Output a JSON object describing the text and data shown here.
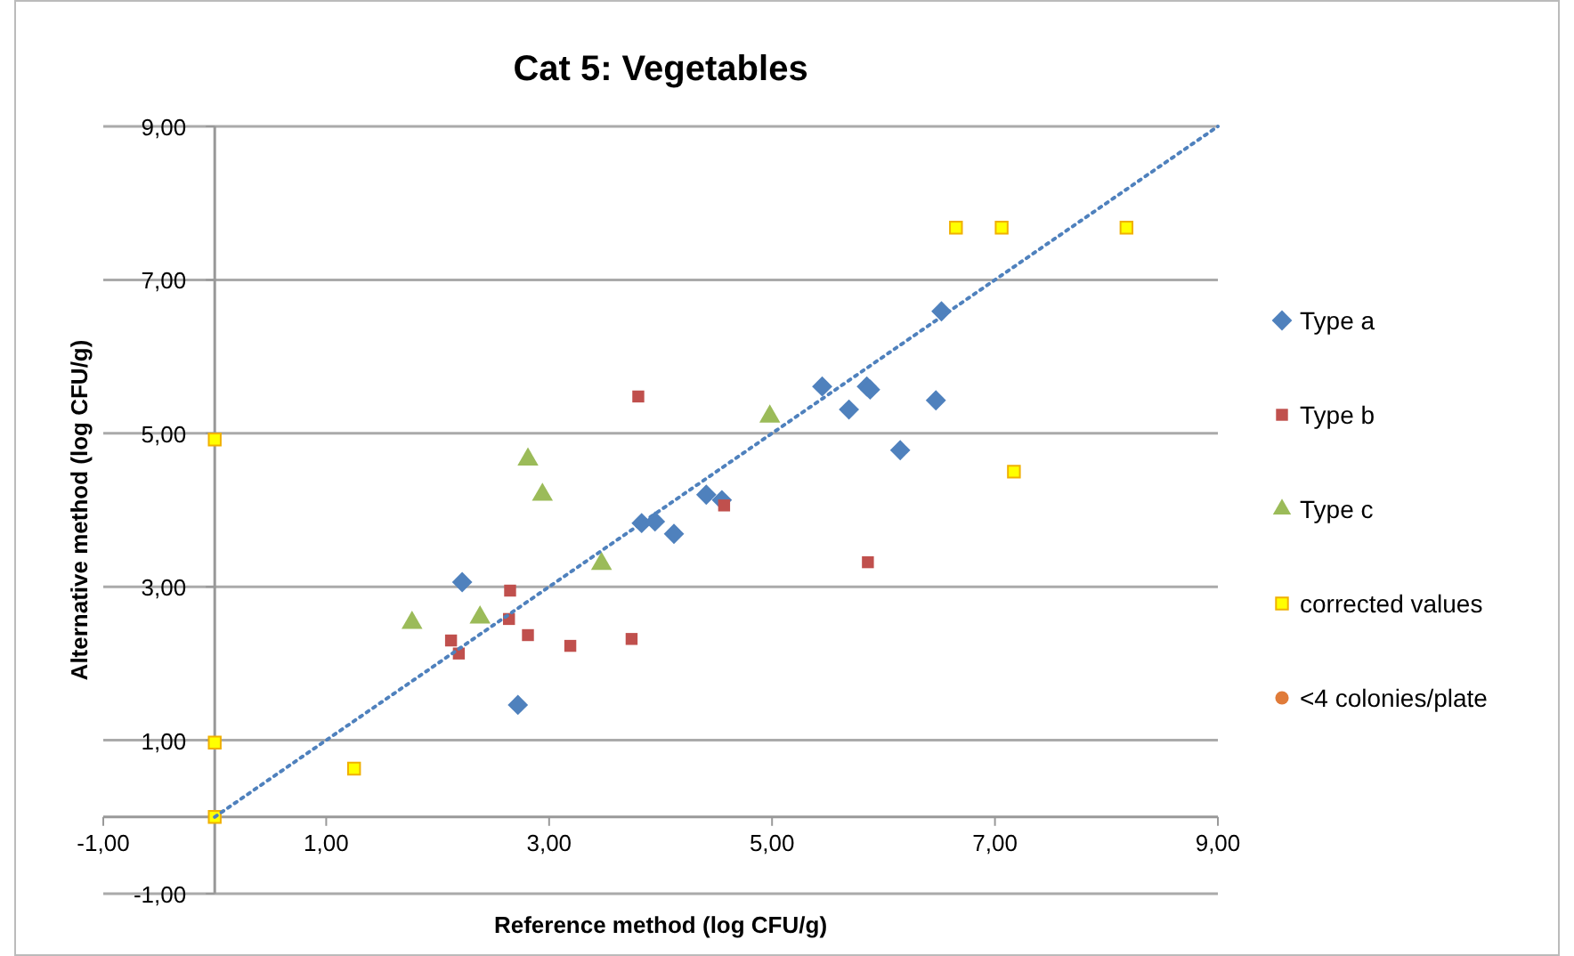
{
  "chart_data": {
    "type": "scatter",
    "title": "Cat 5: Vegetables",
    "xlabel": "Reference method (log CFU/g)",
    "ylabel": "Alternative method (log CFU/g)",
    "xlim": [
      -1,
      9
    ],
    "ylim": [
      -1,
      9
    ],
    "xticks": [
      {
        "value": -1,
        "label": "-1,00"
      },
      {
        "value": 1,
        "label": "1,00"
      },
      {
        "value": 3,
        "label": "3,00"
      },
      {
        "value": 5,
        "label": "5,00"
      },
      {
        "value": 7,
        "label": "7,00"
      },
      {
        "value": 9,
        "label": "9,00"
      }
    ],
    "yticks": [
      {
        "value": -1,
        "label": "-1,00"
      },
      {
        "value": 1,
        "label": "1,00"
      },
      {
        "value": 3,
        "label": "3,00"
      },
      {
        "value": 5,
        "label": "5,00"
      },
      {
        "value": 7,
        "label": "7,00"
      },
      {
        "value": 9,
        "label": "9,00"
      }
    ],
    "grid": "y",
    "legend": "right",
    "series": [
      {
        "name": "Type a",
        "color": "#4f81bd",
        "marker": "diamond",
        "x": [
          2.22,
          2.72,
          3.83,
          3.95,
          4.12,
          4.41,
          4.55,
          5.45,
          5.69,
          5.85,
          5.88,
          6.15,
          6.47,
          6.52
        ],
        "values": [
          3.06,
          1.46,
          3.83,
          3.85,
          3.69,
          4.2,
          4.13,
          5.61,
          5.31,
          5.61,
          5.57,
          4.78,
          5.43,
          6.59
        ]
      },
      {
        "name": "Type b",
        "color": "#c0504d",
        "marker": "square",
        "x": [
          2.65,
          2.64,
          2.12,
          2.19,
          2.81,
          3.19,
          3.74,
          4.57,
          3.8,
          5.86
        ],
        "values": [
          2.95,
          2.58,
          2.3,
          2.13,
          2.37,
          2.23,
          2.32,
          4.06,
          5.48,
          3.32
        ]
      },
      {
        "name": "Type c",
        "color": "#9bbb59",
        "marker": "triangle",
        "x": [
          2.81,
          2.94,
          3.47,
          1.77,
          2.38,
          4.98
        ],
        "values": [
          4.66,
          4.2,
          3.3,
          2.53,
          2.6,
          5.22
        ]
      },
      {
        "name": "corrected values",
        "color": "#ffff00",
        "marker": "square",
        "x": [
          0,
          0,
          0,
          1.25,
          6.65,
          7.06,
          8.18,
          7.17
        ],
        "values": [
          4.92,
          0.97,
          0,
          0.63,
          7.68,
          7.68,
          7.68,
          4.5
        ]
      },
      {
        "name": "<4 colonies/plate",
        "color": "#e07b39",
        "marker": "circle"
      },
      {
        "type": "line",
        "color": "#4f81bd",
        "line_style": "dotted",
        "x": [
          0,
          9
        ],
        "values": [
          0,
          9
        ]
      }
    ]
  }
}
